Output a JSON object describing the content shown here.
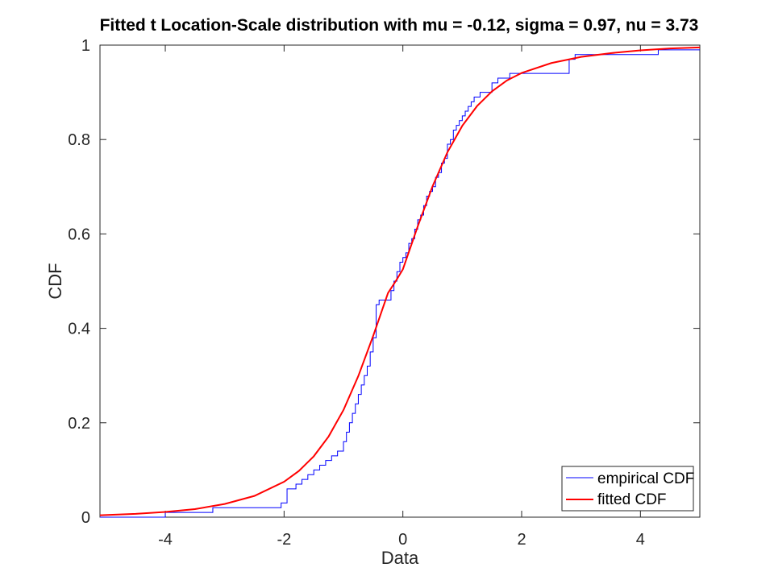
{
  "chart_data": {
    "type": "line",
    "title": "Fitted t Location-Scale distribution with mu = -0.12, sigma = 0.97, nu = 3.73",
    "xlabel": "Data",
    "ylabel": "CDF",
    "xlim": [
      -5.1,
      5.0
    ],
    "ylim": [
      0,
      1
    ],
    "xticks": [
      -4,
      -2,
      0,
      2,
      4
    ],
    "xtick_labels": [
      "-4",
      "-2",
      "0",
      "2",
      "4"
    ],
    "yticks": [
      0,
      0.2,
      0.4,
      0.6,
      0.8,
      1
    ],
    "ytick_labels": [
      "0",
      "0.2",
      "0.4",
      "0.6",
      "0.8",
      "1"
    ],
    "grid": false,
    "legend_position": "bottom-right",
    "series": [
      {
        "name": "empirical CDF",
        "style": "stairs",
        "color": "#0000ff",
        "x": [
          -5.1,
          -4.0,
          -3.2,
          -2.05,
          -1.95,
          -1.8,
          -1.7,
          -1.6,
          -1.5,
          -1.4,
          -1.3,
          -1.2,
          -1.1,
          -1.0,
          -0.95,
          -0.9,
          -0.85,
          -0.8,
          -0.75,
          -0.7,
          -0.65,
          -0.6,
          -0.55,
          -0.5,
          -0.45,
          -0.4,
          -0.35,
          -0.3,
          -0.2,
          -0.15,
          -0.1,
          -0.05,
          0.0,
          0.05,
          0.1,
          0.15,
          0.2,
          0.25,
          0.3,
          0.35,
          0.4,
          0.45,
          0.5,
          0.55,
          0.6,
          0.65,
          0.7,
          0.75,
          0.8,
          0.85,
          0.9,
          0.95,
          1.0,
          1.05,
          1.1,
          1.15,
          1.2,
          1.3,
          1.4,
          1.5,
          1.6,
          1.7,
          1.8,
          2.5,
          2.8,
          2.9,
          4.3,
          5.0
        ],
        "y": [
          0.0,
          0.01,
          0.02,
          0.03,
          0.06,
          0.07,
          0.08,
          0.09,
          0.1,
          0.11,
          0.12,
          0.13,
          0.14,
          0.16,
          0.18,
          0.2,
          0.22,
          0.24,
          0.26,
          0.28,
          0.3,
          0.32,
          0.35,
          0.38,
          0.45,
          0.46,
          0.46,
          0.46,
          0.48,
          0.5,
          0.52,
          0.54,
          0.55,
          0.56,
          0.58,
          0.59,
          0.61,
          0.63,
          0.64,
          0.66,
          0.68,
          0.69,
          0.7,
          0.72,
          0.73,
          0.75,
          0.76,
          0.79,
          0.8,
          0.82,
          0.83,
          0.84,
          0.85,
          0.86,
          0.87,
          0.88,
          0.89,
          0.9,
          0.9,
          0.92,
          0.93,
          0.93,
          0.94,
          0.94,
          0.97,
          0.98,
          0.99,
          0.99
        ]
      },
      {
        "name": "fitted CDF",
        "style": "line",
        "color": "#ff0000",
        "x": [
          -5.1,
          -4.5,
          -4.0,
          -3.5,
          -3.0,
          -2.5,
          -2.0,
          -1.75,
          -1.5,
          -1.25,
          -1.0,
          -0.75,
          -0.5,
          -0.25,
          -0.12,
          0.0,
          0.25,
          0.5,
          0.75,
          1.0,
          1.25,
          1.5,
          1.75,
          2.0,
          2.5,
          3.0,
          3.5,
          4.0,
          4.5,
          5.0
        ],
        "y": [
          0.004,
          0.007,
          0.011,
          0.017,
          0.028,
          0.045,
          0.075,
          0.098,
          0.129,
          0.171,
          0.227,
          0.299,
          0.384,
          0.475,
          0.5,
          0.525,
          0.616,
          0.701,
          0.773,
          0.829,
          0.871,
          0.902,
          0.925,
          0.941,
          0.962,
          0.975,
          0.983,
          0.989,
          0.993,
          0.995
        ]
      }
    ]
  }
}
